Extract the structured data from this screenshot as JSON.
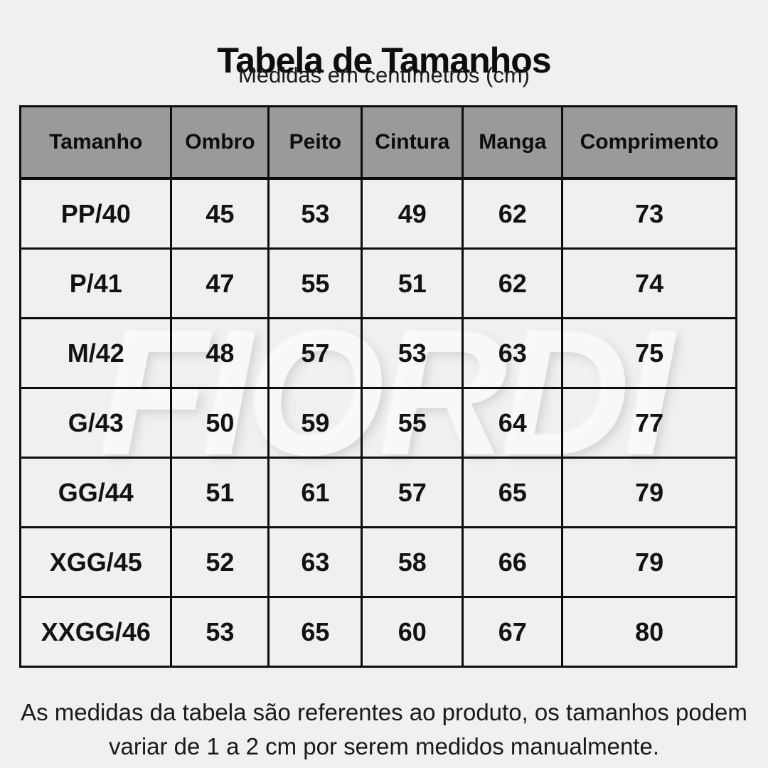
{
  "page": {
    "title": "Tabela de Tamanhos",
    "subtitle": "Medidas em centímetros (cm)",
    "watermark": "FIORDI",
    "footnote_lines": [
      "As medidas da tabela são referentes ao produto, os tamanhos podem",
      "variar de 1 a 2 cm por serem medidos manualmente."
    ]
  },
  "chart_data": {
    "type": "table",
    "title": "Tabela de Tamanhos",
    "subtitle": "Medidas em centímetros (cm)",
    "units": "cm",
    "columns": [
      "Tamanho",
      "Ombro",
      "Peito",
      "Cintura",
      "Manga",
      "Comprimento"
    ],
    "rows": [
      [
        "PP/40",
        "45",
        "53",
        "49",
        "62",
        "73"
      ],
      [
        "P/41",
        "47",
        "55",
        "51",
        "62",
        "74"
      ],
      [
        "M/42",
        "48",
        "57",
        "53",
        "63",
        "75"
      ],
      [
        "G/43",
        "50",
        "59",
        "55",
        "64",
        "77"
      ],
      [
        "GG/44",
        "51",
        "61",
        "57",
        "65",
        "79"
      ],
      [
        "XGG/45",
        "52",
        "63",
        "58",
        "66",
        "79"
      ],
      [
        "XXGG/46",
        "53",
        "65",
        "60",
        "67",
        "80"
      ]
    ]
  },
  "colors": {
    "background": "#eff0f0",
    "header_background": "#9a9a9a",
    "border": "#0d0d0d",
    "text": "#121212",
    "watermark": "#fafaf9"
  }
}
